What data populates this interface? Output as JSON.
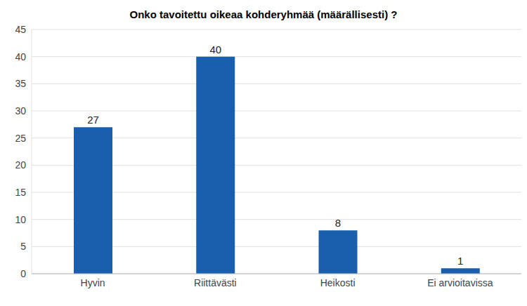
{
  "chart_data": {
    "type": "bar",
    "title": "Onko tavoitettu oikeaa kohderyhmää (määrällisesti) ?",
    "categories": [
      "Hyvin",
      "Riittävästi",
      "Heikosti",
      "Ei arvioitavissa"
    ],
    "values": [
      27,
      40,
      8,
      1
    ],
    "color": "#1a5fad",
    "ylim": [
      0,
      45
    ],
    "yticks": [
      0,
      5,
      10,
      15,
      20,
      25,
      30,
      35,
      40,
      45
    ],
    "grid": true,
    "data_labels": true
  }
}
